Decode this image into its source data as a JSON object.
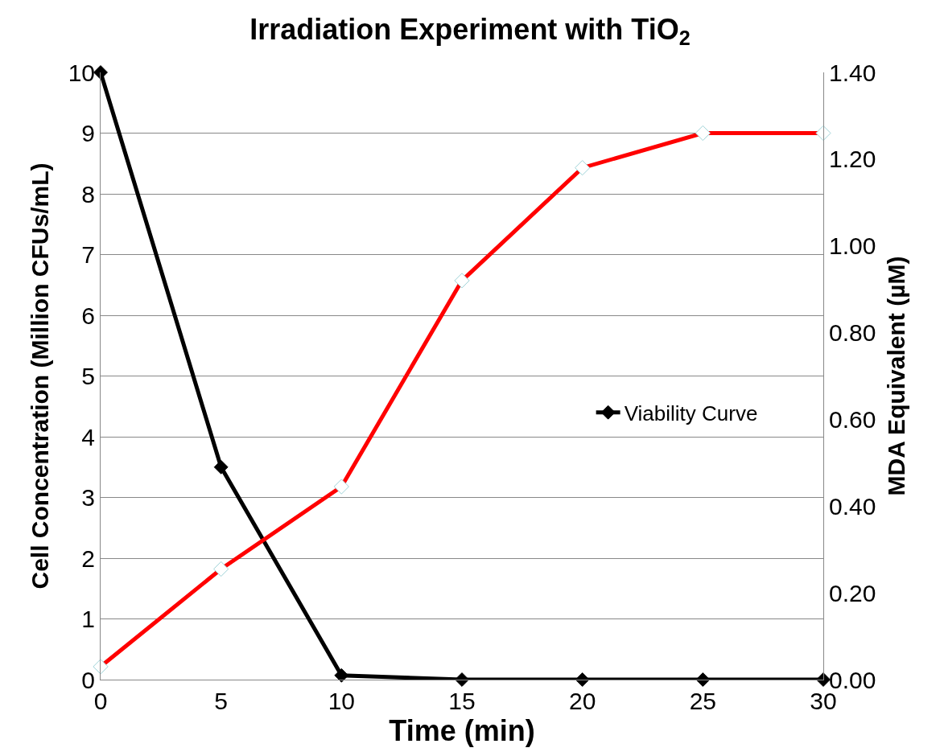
{
  "chart_data": {
    "type": "line",
    "title": "Irradiation Experiment with TiO$_{2}$",
    "xlabel": "Time (min)",
    "ylabel": "Cell Concentration (Million CFUs/mL)",
    "y2label": "MDA Equivalent (µM)",
    "x": [
      0,
      5,
      10,
      15,
      20,
      25,
      30
    ],
    "series": [
      {
        "name": "Viability Curve",
        "color": "#000000",
        "values": [
          10,
          3.5,
          0.07,
          0,
          0,
          0,
          0
        ]
      },
      {
        "color": "#ff0000",
        "axis": "y2",
        "values": [
          0.03,
          0.255,
          0.445,
          0.92,
          1.18,
          1.26,
          1.26
        ]
      }
    ],
    "xlim": [
      0,
      30
    ],
    "xticks": [
      0,
      5,
      10,
      15,
      20,
      25,
      30
    ],
    "ylim": [
      0,
      10
    ],
    "yticks": [
      0,
      1,
      2,
      3,
      4,
      5,
      6,
      7,
      8,
      9,
      10
    ],
    "y2lim": [
      0,
      1.4
    ],
    "y2ticks": [
      {
        "value": 0,
        "label": "0.00"
      },
      {
        "value": 0.2,
        "label": "0.20"
      },
      {
        "value": 0.4,
        "label": "0.40"
      },
      {
        "value": 0.6,
        "label": "0.60"
      },
      {
        "value": 0.8,
        "label": "0.80"
      },
      {
        "value": 1.0,
        "label": "1.00"
      },
      {
        "value": 1.2,
        "label": "1.20"
      },
      {
        "value": 1.4,
        "label": "1.40"
      }
    ],
    "grid": "y",
    "legend": "right",
    "marker": "diamond",
    "line_style": "solid"
  }
}
